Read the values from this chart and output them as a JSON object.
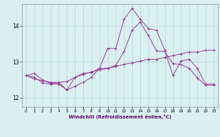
{
  "xlabel": "Windchill (Refroidissement éolien,°C)",
  "background_color": "#d8f0f0",
  "grid_color": "#b8d4d4",
  "line_color": "#993399",
  "xlim": [
    -0.5,
    23.5
  ],
  "ylim": [
    11.75,
    14.6
  ],
  "yticks": [
    12,
    13,
    14
  ],
  "xticks": [
    0,
    1,
    2,
    3,
    4,
    5,
    6,
    7,
    8,
    9,
    10,
    11,
    12,
    13,
    14,
    15,
    16,
    17,
    18,
    19,
    20,
    21,
    22,
    23
  ],
  "series1_x": [
    0,
    1,
    2,
    3,
    4,
    5,
    6,
    7,
    8,
    9,
    10,
    11,
    12,
    13,
    14,
    15,
    16,
    17,
    18,
    19,
    20,
    21,
    22,
    23
  ],
  "series1_y": [
    12.62,
    12.52,
    12.48,
    12.43,
    12.43,
    12.45,
    12.57,
    12.65,
    12.72,
    12.77,
    12.82,
    12.87,
    12.93,
    12.97,
    13.02,
    13.07,
    13.07,
    13.12,
    13.17,
    13.22,
    13.27,
    13.27,
    13.32,
    13.32
  ],
  "series2_x": [
    0,
    1,
    2,
    3,
    4,
    5,
    6,
    7,
    8,
    9,
    10,
    11,
    12,
    13,
    14,
    15,
    16,
    17,
    18,
    19,
    20,
    21,
    22,
    23
  ],
  "series2_y": [
    12.62,
    12.68,
    12.5,
    12.4,
    12.42,
    12.22,
    12.57,
    12.68,
    12.7,
    12.82,
    12.82,
    12.9,
    13.28,
    13.88,
    14.1,
    13.72,
    13.3,
    13.28,
    12.95,
    12.92,
    12.82,
    12.55,
    12.35,
    12.35
  ],
  "series3_x": [
    0,
    1,
    2,
    3,
    4,
    5,
    6,
    7,
    8,
    9,
    10,
    11,
    12,
    13,
    14,
    15,
    16,
    17,
    18,
    19,
    20,
    21,
    22,
    23
  ],
  "series3_y": [
    12.62,
    12.57,
    12.42,
    12.38,
    12.38,
    12.22,
    12.32,
    12.43,
    12.57,
    12.82,
    13.37,
    13.37,
    14.18,
    14.48,
    14.18,
    13.92,
    13.87,
    13.32,
    12.62,
    13.02,
    13.07,
    12.82,
    12.38,
    12.38
  ]
}
